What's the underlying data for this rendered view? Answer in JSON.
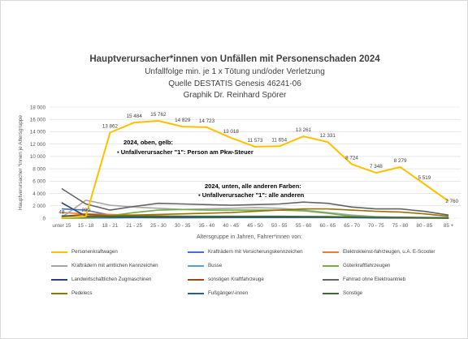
{
  "chart_data": {
    "type": "line",
    "title": "Hauptverursacher*innen von Unfällen mit Personenschaden 2024",
    "subtitle": [
      "Unfallfolge min. je 1 x Tötung und/oder Verletzung",
      "Quelle DESTATIS Genesis 46241-06",
      "Graphik Dr. Reinhard Spörer"
    ],
    "xlabel": "Altersgruppe in Jahren, Fahrer*innen von:",
    "ylabel": "Hauptverursacher *innen je Altersgruppe",
    "ylim": [
      0,
      18000
    ],
    "yticks": [
      "0",
      "2 000",
      "4 000",
      "6 000",
      "8 000",
      "10 000",
      "12 000",
      "14 000",
      "16 000",
      "18 000"
    ],
    "categories": [
      "unter 15",
      "15 - 18",
      "18 - 21",
      "21 - 25",
      "25 - 30",
      "30 - 35",
      "35 - 40",
      "40 - 45",
      "45 - 50",
      "50 - 55",
      "55 - 60",
      "60 - 65",
      "65 - 70",
      "70 - 75",
      "75 - 80",
      "80 - 85",
      "85 +"
    ],
    "grid": true,
    "legend_position": "bottom",
    "annotations": [
      "2024, oben, gelb:",
      "Unfallverursacher \"1\":  Person am Pkw-Steuer",
      "2024, unten, alle anderen Farben:",
      "Unfallverursacher \"1\":  alle anderen"
    ],
    "series": [
      {
        "name": "Personenkraftwagen",
        "color": "#FFC000",
        "labels": true,
        "values": [
          48,
          290,
          13862,
          15484,
          15762,
          14829,
          14723,
          13018,
          11573,
          11654,
          13261,
          12331,
          8724,
          7348,
          8279,
          5519,
          2760
        ]
      },
      {
        "name": "Krafträdern mit Versicherungskennzeichen",
        "color": "#4472C4",
        "values": [
          1500,
          1300,
          500,
          350,
          250,
          200,
          180,
          160,
          150,
          140,
          130,
          120,
          110,
          100,
          90,
          60,
          20
        ]
      },
      {
        "name": "Elektrokleinst-fahrzeugen, u.A. E-Scooter",
        "color": "#ED7D31",
        "values": [
          900,
          700,
          600,
          500,
          400,
          300,
          250,
          200,
          180,
          150,
          120,
          100,
          80,
          60,
          40,
          20,
          10
        ]
      },
      {
        "name": "Krafträdern mit amtlichen Kennzeichen",
        "color": "#A5A5A5",
        "values": [
          100,
          2900,
          2100,
          1800,
          1600,
          1400,
          1500,
          1600,
          1700,
          1600,
          1300,
          900,
          500,
          250,
          150,
          60,
          20
        ]
      },
      {
        "name": "Busse",
        "color": "#5B9BD5",
        "values": [
          0,
          0,
          20,
          60,
          120,
          160,
          180,
          200,
          220,
          230,
          220,
          160,
          60,
          20,
          10,
          0,
          0
        ]
      },
      {
        "name": "Güterkraftfahrzeugen",
        "color": "#70AD47",
        "values": [
          0,
          30,
          400,
          900,
          1300,
          1400,
          1300,
          1300,
          1300,
          1300,
          1200,
          800,
          300,
          150,
          80,
          30,
          10
        ]
      },
      {
        "name": "Landwirtschaftlichen Zugmaschinen",
        "color": "#264478",
        "values": [
          2500,
          300,
          150,
          100,
          80,
          80,
          90,
          100,
          110,
          120,
          130,
          120,
          100,
          80,
          60,
          40,
          20
        ]
      },
      {
        "name": "sonstigen Kraftfahrzeuge",
        "color": "#9E480E",
        "values": [
          300,
          600,
          400,
          300,
          250,
          250,
          250,
          250,
          250,
          250,
          230,
          200,
          150,
          100,
          80,
          50,
          20
        ]
      },
      {
        "name": "Fahrrad ohne Elektroantrieb",
        "color": "#636363",
        "values": [
          4800,
          2300,
          1300,
          1900,
          2400,
          2300,
          2200,
          2100,
          2200,
          2300,
          2600,
          2400,
          1800,
          1500,
          1500,
          1100,
          500
        ]
      },
      {
        "name": "Pedelecs",
        "color": "#997300",
        "values": [
          100,
          300,
          400,
          500,
          600,
          700,
          800,
          900,
          1100,
          1300,
          1500,
          1500,
          1300,
          1100,
          1000,
          700,
          300
        ]
      },
      {
        "name": "Fußgänger/-innen",
        "color": "#255E91",
        "values": [
          400,
          200,
          150,
          150,
          150,
          150,
          150,
          150,
          150,
          150,
          150,
          130,
          120,
          110,
          130,
          100,
          60
        ]
      },
      {
        "name": "Sonstige",
        "color": "#43682B",
        "values": [
          200,
          200,
          250,
          300,
          300,
          300,
          300,
          300,
          300,
          300,
          280,
          250,
          200,
          150,
          120,
          80,
          30
        ]
      }
    ]
  }
}
